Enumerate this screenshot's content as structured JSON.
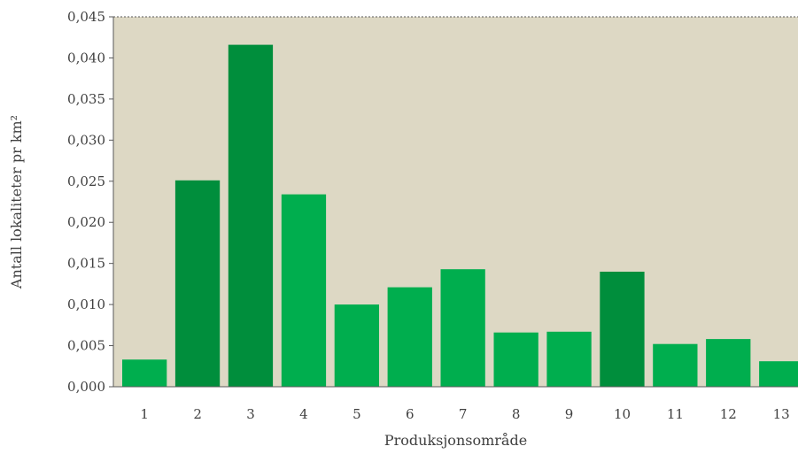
{
  "chart_data": {
    "type": "bar",
    "categories": [
      "1",
      "2",
      "3",
      "4",
      "5",
      "6",
      "7",
      "8",
      "9",
      "10",
      "11",
      "12",
      "13"
    ],
    "values": [
      0.0033,
      0.0251,
      0.0416,
      0.0234,
      0.01,
      0.0121,
      0.0143,
      0.0066,
      0.0067,
      0.014,
      0.0052,
      0.0058,
      0.0031
    ],
    "highlight": [
      false,
      true,
      true,
      false,
      false,
      false,
      false,
      false,
      false,
      true,
      false,
      false,
      false
    ],
    "xlabel": "Produksjonsområde",
    "ylabel": "Antall lokaliteter pr km²",
    "ylim": [
      0,
      0.045
    ],
    "yticks": [
      "0,000",
      "0,005",
      "0,010",
      "0,015",
      "0,020",
      "0,025",
      "0,030",
      "0,035",
      "0,040",
      "0,045"
    ],
    "grid": false,
    "colors": {
      "plot_background": "#ddd8c4",
      "bar": "#00ae4e",
      "bar_highlight": "#008e3c",
      "axis": "#595959"
    }
  }
}
